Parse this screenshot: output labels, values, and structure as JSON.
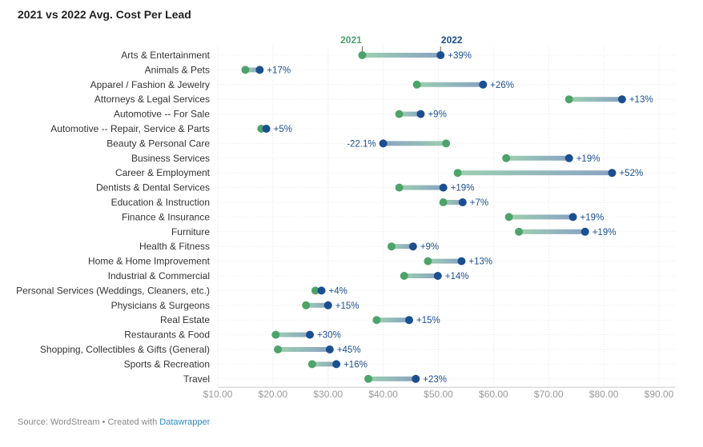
{
  "title": "2021 vs 2022 Avg. Cost Per Lead",
  "footer": {
    "source": "Source: WordStream • Created with ",
    "link": "Datawrapper"
  },
  "colors": {
    "y2021": "#4da36a",
    "y2022": "#1b4f8f"
  },
  "chart_data": {
    "type": "dot-range",
    "title": "2021 vs 2022 Avg. Cost Per Lead",
    "x_ticks": [
      "$10.00",
      "$20.00",
      "$30.00",
      "$40.00",
      "$50.00",
      "$60.00",
      "$70.00",
      "$80.00",
      "$90.00"
    ],
    "xlim": [
      8.5,
      91.5
    ],
    "grid": true,
    "series_names": [
      "2021",
      "2022"
    ],
    "categories": [
      "Arts & Entertainment",
      "Animals & Pets",
      "Apparel / Fashion & Jewelry",
      "Attorneys & Legal Services",
      "Automotive -- For Sale",
      "Automotive -- Repair, Service & Parts",
      "Beauty & Personal Care",
      "Business Services",
      "Career & Employment",
      "Dentists & Dental Services",
      "Education & Instruction",
      "Finance & Insurance",
      "Furniture",
      "Health & Fitness",
      "Home & Home Improvement",
      "Industrial & Commercial",
      "Personal Services (Weddings, Cleaners, etc.)",
      "Physicians & Surgeons",
      "Real Estate",
      "Restaurants & Food",
      "Shopping, Collectibles & Gifts (General)",
      "Sports & Recreation",
      "Travel"
    ],
    "values_2021": [
      36.2,
      15.0,
      46.1,
      73.7,
      42.9,
      17.9,
      51.4,
      62.3,
      53.5,
      42.9,
      50.9,
      62.8,
      64.6,
      41.5,
      48.1,
      43.8,
      27.7,
      26.0,
      38.8,
      20.5,
      20.9,
      27.1,
      37.3
    ],
    "values_2022": [
      50.4,
      17.6,
      58.1,
      83.3,
      46.8,
      18.8,
      40.0,
      73.7,
      81.5,
      50.9,
      54.4,
      74.4,
      76.6,
      45.4,
      54.2,
      49.9,
      28.8,
      30.0,
      44.7,
      26.7,
      30.3,
      31.5,
      45.9
    ],
    "change_labels": [
      "+39%",
      "+17%",
      "+26%",
      "+13%",
      "+9%",
      "+5%",
      "-22.1%",
      "+19%",
      "+52%",
      "+19%",
      "+7%",
      "+19%",
      "+19%",
      "+9%",
      "+13%",
      "+14%",
      "+4%",
      "+15%",
      "+15%",
      "+30%",
      "+45%",
      "+16%",
      "+23%"
    ]
  }
}
